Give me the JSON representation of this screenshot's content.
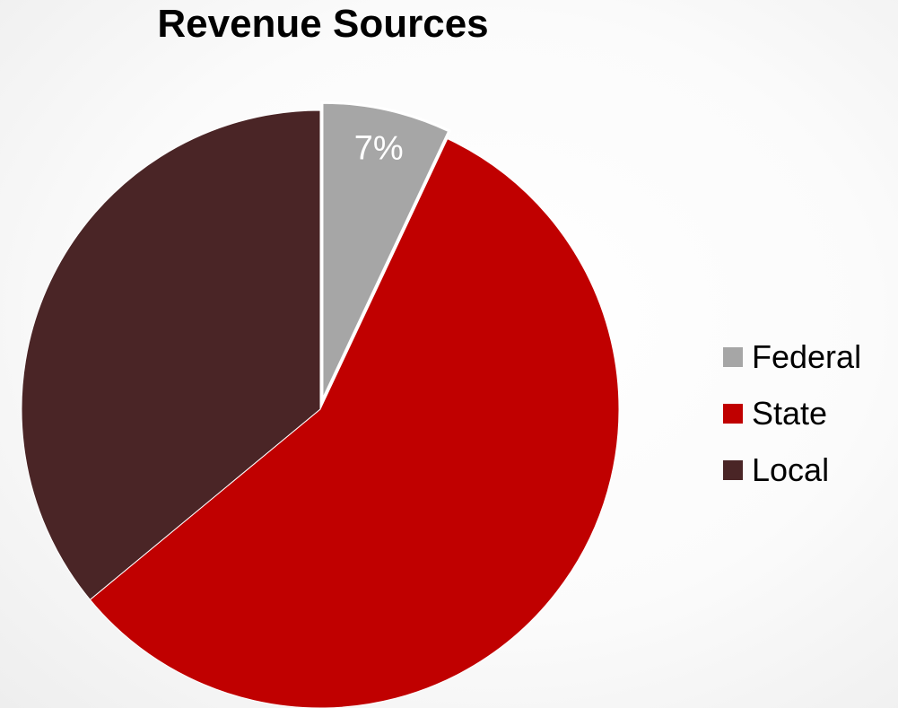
{
  "chart_data": {
    "type": "pie",
    "title": "Revenue Sources",
    "slices": [
      {
        "label": "Federal",
        "value": 7,
        "data_label": "7%",
        "color": "#a6a6a6",
        "exploded": true
      },
      {
        "label": "State",
        "value": 57,
        "data_label": "",
        "color": "#c00000",
        "exploded": false
      },
      {
        "label": "Local",
        "value": 36,
        "data_label": "",
        "color": "#4a2526",
        "exploded": false
      }
    ],
    "legend_position": "right",
    "start_angle": "12 o'clock",
    "direction": "clockwise"
  }
}
